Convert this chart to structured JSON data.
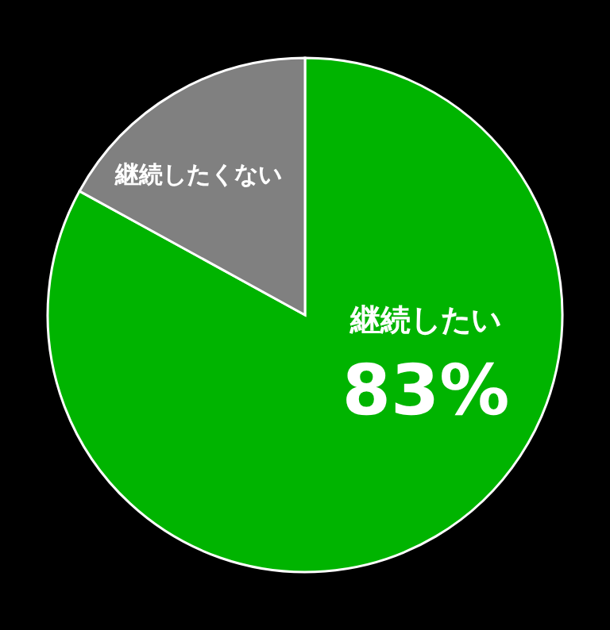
{
  "chart_data": {
    "type": "pie",
    "categories": [
      "継続したい",
      "継続したくない"
    ],
    "values": [
      83,
      17
    ],
    "colors": [
      "#00b400",
      "#808080"
    ],
    "value_labels": [
      "83%",
      null
    ]
  }
}
